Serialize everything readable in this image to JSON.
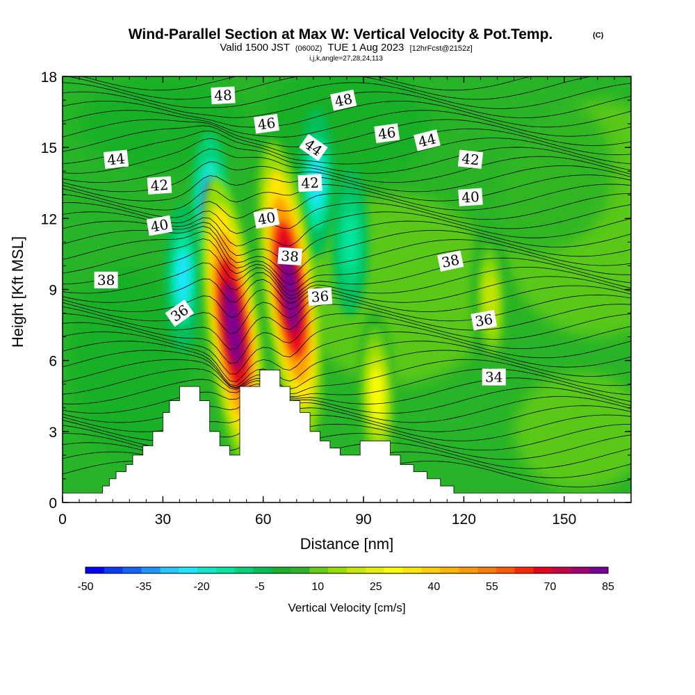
{
  "chart_data": {
    "type": "heatmap",
    "title": "Wind-Parallel Section at Max W: Vertical Velocity & Pot.Temp.",
    "title_mark": "(C)",
    "subtitle_prefix": "Valid 1500 JST",
    "subtitle_utc": "(0600Z)",
    "subtitle_date": "TUE 1 Aug 2023",
    "subtitle_run": "[12hrFcst@2152z]",
    "subtitle_params": "i,j,k,angle=27,28,24,113",
    "xlabel": "Distance [nm]",
    "ylabel": "Height [Kft MSL]",
    "xlim": [
      0,
      170
    ],
    "ylim": [
      0,
      18
    ],
    "x_ticks": [
      0,
      30,
      60,
      90,
      120,
      150
    ],
    "y_ticks": [
      0,
      3,
      6,
      9,
      12,
      15,
      18
    ],
    "colorbar": {
      "title": "Vertical Velocity [cm/s]",
      "min": -50,
      "max": 85,
      "step": 5,
      "tick_labels": [
        "-50",
        "-35",
        "-20",
        "-5",
        "10",
        "25",
        "40",
        "55",
        "70",
        "85"
      ],
      "colors": [
        "#0000ff",
        "#0a3cff",
        "#1464ff",
        "#1e96ff",
        "#28c8ff",
        "#1ee6ff",
        "#14e6c8",
        "#00e6a0",
        "#00d278",
        "#00be5a",
        "#18b028",
        "#2cb428",
        "#64cc14",
        "#96dc00",
        "#c8e600",
        "#e6f000",
        "#ffff00",
        "#ffe600",
        "#ffcd00",
        "#ffb400",
        "#ff9b00",
        "#ff7d00",
        "#ff5a00",
        "#ff2800",
        "#e6001e",
        "#c80046",
        "#a0006e",
        "#780096"
      ]
    },
    "terrain_profile": [
      [
        0,
        0.4
      ],
      [
        12,
        0.4
      ],
      [
        12,
        0.7
      ],
      [
        14,
        0.7
      ],
      [
        14,
        1.0
      ],
      [
        16,
        1.0
      ],
      [
        16,
        1.3
      ],
      [
        19,
        1.3
      ],
      [
        19,
        1.6
      ],
      [
        21,
        1.6
      ],
      [
        21,
        2.0
      ],
      [
        24,
        2.0
      ],
      [
        24,
        2.4
      ],
      [
        27,
        2.4
      ],
      [
        27,
        3.0
      ],
      [
        30,
        3.0
      ],
      [
        30,
        3.8
      ],
      [
        32,
        3.8
      ],
      [
        32,
        4.3
      ],
      [
        35,
        4.3
      ],
      [
        35,
        4.9
      ],
      [
        41,
        4.9
      ],
      [
        41,
        4.3
      ],
      [
        44,
        4.3
      ],
      [
        44,
        3.0
      ],
      [
        47,
        3.0
      ],
      [
        47,
        2.4
      ],
      [
        50,
        2.4
      ],
      [
        50,
        2.0
      ],
      [
        53,
        2.0
      ],
      [
        53,
        4.9
      ],
      [
        59,
        4.9
      ],
      [
        59,
        5.6
      ],
      [
        65,
        5.6
      ],
      [
        65,
        4.9
      ],
      [
        68,
        4.9
      ],
      [
        68,
        4.3
      ],
      [
        71,
        4.3
      ],
      [
        71,
        3.8
      ],
      [
        74,
        3.8
      ],
      [
        74,
        3.0
      ],
      [
        77,
        3.0
      ],
      [
        77,
        2.6
      ],
      [
        80,
        2.6
      ],
      [
        80,
        2.3
      ],
      [
        83,
        2.3
      ],
      [
        83,
        2.0
      ],
      [
        89,
        2.0
      ],
      [
        89,
        2.6
      ],
      [
        98,
        2.6
      ],
      [
        98,
        2.0
      ],
      [
        101,
        2.0
      ],
      [
        101,
        1.6
      ],
      [
        105,
        1.6
      ],
      [
        105,
        1.3
      ],
      [
        109,
        1.3
      ],
      [
        109,
        1.0
      ],
      [
        113,
        1.0
      ],
      [
        113,
        0.7
      ],
      [
        117,
        0.7
      ],
      [
        117,
        0.4
      ],
      [
        170,
        0.4
      ]
    ],
    "updrafts": [
      {
        "x": 51,
        "y": 7.5,
        "w_peak": 85
      },
      {
        "x": 68,
        "y": 9.0,
        "w_peak": 85
      },
      {
        "x": 94,
        "y": 4.5,
        "w_peak": 28
      },
      {
        "x": 128,
        "y": 8.5,
        "w_peak": 18
      }
    ],
    "downdrafts": [
      {
        "x": 44,
        "y": 12.5,
        "w_peak": -40
      },
      {
        "x": 76,
        "y": 13.5,
        "w_peak": -25
      },
      {
        "x": 36,
        "y": 9.5,
        "w_peak": -25
      },
      {
        "x": 86,
        "y": 11.0,
        "w_peak": -15
      }
    ],
    "theta_contour_labels": [
      {
        "text": "48",
        "x": 48,
        "y": 17.2,
        "angle": -3
      },
      {
        "text": "48",
        "x": 84,
        "y": 17.0,
        "angle": -12
      },
      {
        "text": "46",
        "x": 61,
        "y": 16.0,
        "angle": -8
      },
      {
        "text": "46",
        "x": 97,
        "y": 15.6,
        "angle": -8
      },
      {
        "text": "44",
        "x": 16,
        "y": 14.5,
        "angle": -6
      },
      {
        "text": "44",
        "x": 75,
        "y": 15.0,
        "angle": 35
      },
      {
        "text": "44",
        "x": 109,
        "y": 15.3,
        "angle": -14
      },
      {
        "text": "42",
        "x": 29,
        "y": 13.4,
        "angle": -4
      },
      {
        "text": "42",
        "x": 74,
        "y": 13.5,
        "angle": -3
      },
      {
        "text": "42",
        "x": 122,
        "y": 14.5,
        "angle": 6
      },
      {
        "text": "40",
        "x": 29,
        "y": 11.7,
        "angle": -10
      },
      {
        "text": "40",
        "x": 61,
        "y": 12.0,
        "angle": -10
      },
      {
        "text": "40",
        "x": 122,
        "y": 12.9,
        "angle": -4
      },
      {
        "text": "38",
        "x": 13,
        "y": 9.4,
        "angle": 0
      },
      {
        "text": "38",
        "x": 68,
        "y": 10.4,
        "angle": 4
      },
      {
        "text": "38",
        "x": 116,
        "y": 10.2,
        "angle": -12
      },
      {
        "text": "36",
        "x": 35,
        "y": 8.0,
        "angle": -35
      },
      {
        "text": "36",
        "x": 77,
        "y": 8.7,
        "angle": -4
      },
      {
        "text": "36",
        "x": 126,
        "y": 7.7,
        "angle": -10
      },
      {
        "text": "34",
        "x": 129,
        "y": 5.3,
        "angle": 0
      }
    ],
    "grid": false
  }
}
